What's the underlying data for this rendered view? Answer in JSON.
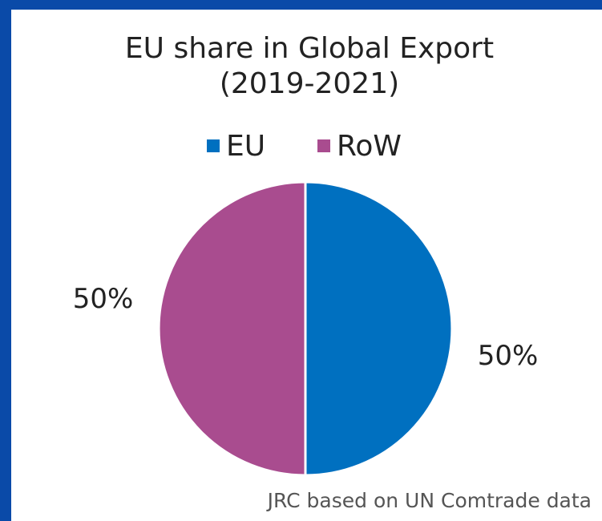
{
  "chart_data": {
    "type": "pie",
    "title": "EU share in Global Export",
    "subtitle": "(2019-2021)",
    "categories": [
      "EU",
      "RoW"
    ],
    "values": [
      50,
      50
    ],
    "value_labels": [
      "50%",
      "50%"
    ],
    "colors": [
      "#0070c0",
      "#a94c8f"
    ],
    "legend": "top",
    "source": "JRC based on UN Comtrade data"
  }
}
